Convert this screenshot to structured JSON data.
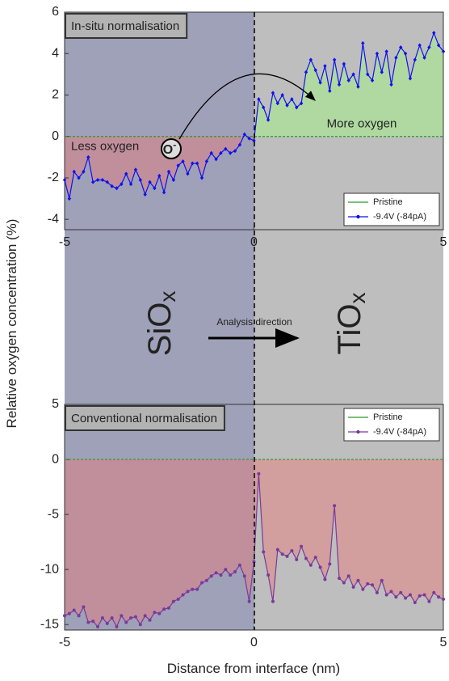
{
  "chart_data": [
    {
      "type": "line",
      "title": "In-situ normalisation",
      "xlim": [
        -5,
        5
      ],
      "xticks": [
        -5,
        0,
        5
      ],
      "ylim": [
        -4.5,
        6
      ],
      "yticks": [
        -4,
        -2,
        0,
        2,
        4,
        6
      ],
      "legend": "lower right",
      "annotations": {
        "below": "Less oxygen",
        "below_color": "#cc1111",
        "above": "More oxygen",
        "above_color": "#3a8a1a",
        "ion": {
          "base": "O",
          "sup": "-"
        }
      },
      "fill_below_color": "rgba(235,120,120,0.45)",
      "fill_above_color": "rgba(170,225,150,0.75)",
      "series": [
        {
          "name": "Pristine",
          "color": "#2a9a2a",
          "x": [
            -5,
            5
          ],
          "values": [
            0,
            0
          ]
        },
        {
          "name": "-9.4V (-84pA)",
          "color": "#1010ee",
          "marker": "diamond",
          "x": [
            -5,
            -4.875,
            -4.75,
            -4.625,
            -4.5,
            -4.375,
            -4.25,
            -4.125,
            -4,
            -3.875,
            -3.75,
            -3.625,
            -3.5,
            -3.375,
            -3.25,
            -3.125,
            -3,
            -2.875,
            -2.75,
            -2.625,
            -2.5,
            -2.375,
            -2.25,
            -2.125,
            -2,
            -1.875,
            -1.75,
            -1.625,
            -1.5,
            -1.375,
            -1.25,
            -1.125,
            -1,
            -0.875,
            -0.75,
            -0.625,
            -0.5,
            -0.375,
            -0.25,
            -0.125,
            0,
            0.125,
            0.25,
            0.375,
            0.5,
            0.625,
            0.75,
            0.875,
            1,
            1.125,
            1.25,
            1.375,
            1.5,
            1.625,
            1.75,
            1.875,
            2,
            2.125,
            2.25,
            2.375,
            2.5,
            2.625,
            2.75,
            2.875,
            3,
            3.125,
            3.25,
            3.375,
            3.5,
            3.625,
            3.75,
            3.875,
            4,
            4.125,
            4.25,
            4.375,
            4.5,
            4.625,
            4.75,
            4.875,
            5
          ],
          "values": [
            -2.1,
            -3.0,
            -1.7,
            -2.0,
            -1.7,
            -1.0,
            -2.2,
            -2.1,
            -2.1,
            -2.2,
            -2.4,
            -2.5,
            -2.3,
            -1.8,
            -2.3,
            -1.6,
            -2.1,
            -2.8,
            -2.2,
            -2.5,
            -1.9,
            -2.7,
            -1.7,
            -2.1,
            -1.4,
            -1.2,
            -1.8,
            -1.3,
            -1.3,
            -2.0,
            -1.2,
            -0.8,
            -1.1,
            -0.8,
            -0.6,
            -0.8,
            -0.7,
            -0.4,
            0.1,
            -0.1,
            -0.2,
            1.8,
            1.4,
            0.8,
            2.1,
            1.6,
            2.0,
            1.5,
            1.8,
            1.4,
            1.6,
            3.1,
            3.7,
            3.2,
            2.6,
            3.4,
            2.2,
            3.7,
            2.5,
            3.5,
            2.7,
            3.0,
            2.4,
            4.5,
            3.0,
            2.7,
            4.0,
            3.1,
            4.1,
            2.5,
            3.8,
            4.3,
            4.0,
            2.8,
            3.7,
            4.4,
            3.8,
            4.3,
            5.0,
            4.4,
            4.1
          ]
        }
      ]
    },
    {
      "type": "line",
      "title": "Conventional normalisation",
      "xlim": [
        -5,
        5
      ],
      "xticks": [
        -5,
        0,
        5
      ],
      "ylim": [
        -15.5,
        5
      ],
      "yticks": [
        -15,
        -10,
        -5,
        0,
        5
      ],
      "legend": "upper right",
      "fill_below_color": "rgba(235,120,120,0.45)",
      "series": [
        {
          "name": "Pristine",
          "color": "#2a9a2a",
          "x": [
            -5,
            5
          ],
          "values": [
            0,
            0
          ]
        },
        {
          "name": "-9.4V (-84pA)",
          "color": "#7a3a9a",
          "marker": "circle",
          "x": [
            -5,
            -4.875,
            -4.75,
            -4.625,
            -4.5,
            -4.375,
            -4.25,
            -4.125,
            -4,
            -3.875,
            -3.75,
            -3.625,
            -3.5,
            -3.375,
            -3.25,
            -3.125,
            -3,
            -2.875,
            -2.75,
            -2.625,
            -2.5,
            -2.375,
            -2.25,
            -2.125,
            -2,
            -1.875,
            -1.75,
            -1.625,
            -1.5,
            -1.375,
            -1.25,
            -1.125,
            -1,
            -0.875,
            -0.75,
            -0.625,
            -0.5,
            -0.375,
            -0.25,
            -0.125,
            0,
            0.125,
            0.25,
            0.375,
            0.5,
            0.625,
            0.75,
            0.875,
            1,
            1.125,
            1.25,
            1.375,
            1.5,
            1.625,
            1.75,
            1.875,
            2,
            2.125,
            2.25,
            2.375,
            2.5,
            2.625,
            2.75,
            2.875,
            3,
            3.125,
            3.25,
            3.375,
            3.5,
            3.625,
            3.75,
            3.875,
            4,
            4.125,
            4.25,
            4.375,
            4.5,
            4.625,
            4.75,
            4.875,
            5
          ],
          "values": [
            -14.2,
            -14.0,
            -13.7,
            -14.2,
            -13.4,
            -14.8,
            -14.7,
            -15.2,
            -14.4,
            -14.9,
            -14.4,
            -15.2,
            -14.2,
            -14.8,
            -14.4,
            -14.3,
            -15.0,
            -14.2,
            -14.6,
            -13.9,
            -14.0,
            -13.6,
            -13.5,
            -12.9,
            -12.7,
            -12.3,
            -12.0,
            -11.8,
            -11.8,
            -11.2,
            -11.0,
            -10.6,
            -10.3,
            -10.5,
            -10.0,
            -10.5,
            -10.2,
            -9.6,
            -10.6,
            -12.9,
            -9.3,
            -1.3,
            -8.4,
            -10.5,
            -12.9,
            -8.2,
            -8.6,
            -8.8,
            -8.3,
            -9.1,
            -7.9,
            -9.0,
            -9.6,
            -8.9,
            -9.8,
            -10.9,
            -9.5,
            -4.2,
            -10.8,
            -11.2,
            -10.6,
            -11.6,
            -11.0,
            -11.8,
            -11.3,
            -11.4,
            -12.1,
            -11.0,
            -12.3,
            -12.0,
            -12.5,
            -12.1,
            -12.6,
            -12.3,
            -13.0,
            -12.4,
            -12.3,
            -12.9,
            -12.1,
            -12.5,
            -12.7
          ]
        }
      ]
    }
  ],
  "ylabel": "Relative oxygen concentration (%)",
  "xlabel": "Distance from interface (nm)",
  "left_material": {
    "base": "SiO",
    "sub": "x"
  },
  "right_material": {
    "base": "TiO",
    "sub": "x"
  },
  "direction": "Analysis  direction"
}
